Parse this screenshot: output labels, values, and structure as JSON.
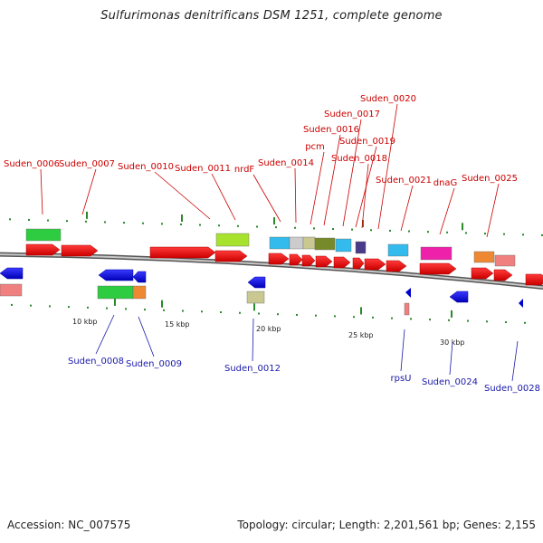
{
  "title": "Sulfurimonas denitrificans DSM 1251, complete genome",
  "footer": {
    "accession": "Accession: NC_007575",
    "summary": "Topology: circular; Length: 2,201,561 bp; Genes: 2,155"
  },
  "colors": {
    "top_label": "#cc0000",
    "bottom_label": "#1a1aaa",
    "backbone": "#888888",
    "tick": "#2a8a2a"
  },
  "genes_top": [
    "Suden_0006",
    "Suden_0007",
    "Suden_0010",
    "Suden_0011",
    "nrdF",
    "Suden_0014",
    "pcm",
    "Suden_0016",
    "Suden_0017",
    "Suden_0019",
    "Suden_0018",
    "Suden_0020",
    "Suden_0021",
    "dnaG",
    "Suden_0025"
  ],
  "genes_bottom": [
    "Suden_0008",
    "Suden_0009",
    "Suden_0012",
    "rpsU",
    "Suden_0024",
    "Suden_0028"
  ],
  "scale_labels": [
    "10 kbp",
    "15 kbp",
    "20 kbp",
    "25 kbp",
    "30 kbp"
  ]
}
